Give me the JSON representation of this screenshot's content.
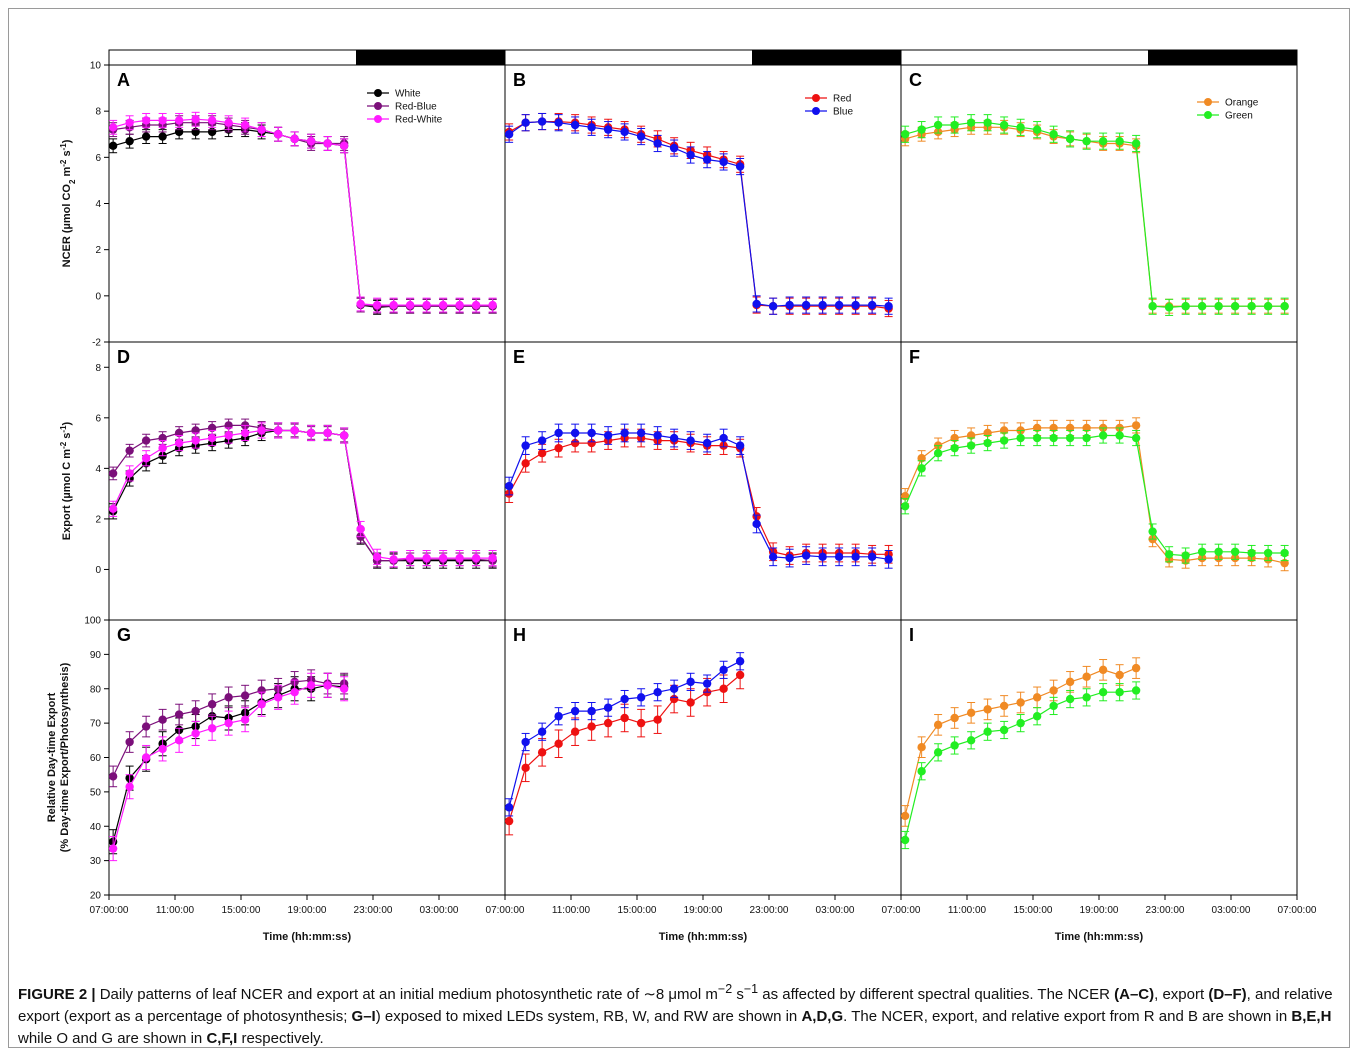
{
  "caption": {
    "fig_label": "FIGURE 2 |",
    "p1": " Daily patterns of leaf NCER and export at an initial medium photosynthetic rate of ∼8 μmol m",
    "sup1": "−2",
    "p2": " s",
    "sup2": "−1",
    "p3": " as affected by different spectral qualities. The NCER ",
    "b1": "(A–C)",
    "p4": ", export ",
    "b2": "(D–F)",
    "p5": ", and relative export (export as a percentage of photosynthesis; ",
    "b3": "G–I",
    "p6": ") exposed to mixed LEDs system, RB, W, and RW are shown in ",
    "b4": "A,D,G",
    "p7": ". The NCER, export, and relative export from R and B are shown in ",
    "b5": "B,E,H",
    "p8": " while O and G are shown in ",
    "b6": "C,F,I",
    "p9": " respectively."
  },
  "colors": {
    "White": "#000000",
    "Red-Blue": "#7b0f7a",
    "Red-White": "#ff1aff",
    "Red": "#ee1111",
    "Blue": "#1010ee",
    "Orange": "#f08a24",
    "Green": "#22ee22"
  },
  "chart_data": {
    "type": "line",
    "x_axis": {
      "label": "Time (hh:mm:ss)",
      "tick_labels": [
        "07:00:00",
        "11:00:00",
        "15:00:00",
        "19:00:00",
        "23:00:00",
        "03:00:00",
        "07:00:00"
      ],
      "tick_hours": [
        7,
        11,
        15,
        19,
        23,
        27,
        31
      ],
      "range_hours": [
        7,
        31
      ]
    },
    "light_bar": {
      "light_hours": [
        7,
        22
      ],
      "dark_hours": [
        22,
        31
      ]
    },
    "rows": [
      {
        "id": "ncer",
        "ylabel": "NCER (µmol CO₂ m⁻² s⁻¹)",
        "ylabel_parts": [
          "NCER (µmol CO",
          "2",
          " m",
          "-2",
          " s",
          "-1",
          ")"
        ],
        "ylim": [
          -2,
          10
        ],
        "yticks": [
          -2,
          0,
          2,
          4,
          6,
          8,
          10
        ]
      },
      {
        "id": "export",
        "ylabel": "Export (µmol C m⁻² s⁻¹)",
        "ylabel_parts": [
          "Export (µmol C m",
          "-2",
          " s",
          "-1",
          ")"
        ],
        "ylim": [
          -2,
          9
        ],
        "yticks": [
          0,
          2,
          4,
          6,
          8
        ]
      },
      {
        "id": "relative",
        "ylabel": [
          "Relative Day-time Export",
          "(% Day-time Export/Photosynthesis)"
        ],
        "ylim": [
          20,
          100
        ],
        "yticks": [
          20,
          30,
          40,
          50,
          60,
          70,
          80,
          90,
          100
        ]
      }
    ],
    "panels": [
      {
        "letter": "A",
        "row": 0,
        "col": 0,
        "legend": [
          "White",
          "Red-Blue",
          "Red-White"
        ],
        "x": [
          7.25,
          8.25,
          9.25,
          10.25,
          11.25,
          12.25,
          13.25,
          14.25,
          15.25,
          16.25,
          17.25,
          18.25,
          19.25,
          20.25,
          21.25,
          22.25,
          23.25,
          24.25,
          25.25,
          26.25,
          27.25,
          28.25,
          29.25,
          30.25
        ],
        "series": [
          {
            "name": "White",
            "values": [
              6.5,
              6.7,
              6.9,
              6.9,
              7.1,
              7.1,
              7.1,
              7.2,
              7.2,
              7.1,
              7.0,
              6.8,
              6.7,
              6.6,
              6.5,
              -0.4,
              -0.5,
              -0.45,
              -0.45,
              -0.45,
              -0.45,
              -0.45,
              -0.45,
              -0.45
            ],
            "err": 0.3
          },
          {
            "name": "Red-Blue",
            "values": [
              7.2,
              7.3,
              7.4,
              7.4,
              7.5,
              7.5,
              7.5,
              7.4,
              7.3,
              7.2,
              7.0,
              6.8,
              6.6,
              6.6,
              6.6,
              -0.4,
              -0.45,
              -0.45,
              -0.45,
              -0.45,
              -0.45,
              -0.45,
              -0.45,
              -0.45
            ],
            "err": 0.3
          },
          {
            "name": "Red-White",
            "values": [
              7.3,
              7.5,
              7.6,
              7.6,
              7.6,
              7.65,
              7.6,
              7.5,
              7.4,
              7.2,
              7.0,
              6.8,
              6.7,
              6.6,
              6.5,
              -0.35,
              -0.4,
              -0.4,
              -0.4,
              -0.4,
              -0.4,
              -0.4,
              -0.4,
              -0.4
            ],
            "err": 0.3
          }
        ]
      },
      {
        "letter": "B",
        "row": 0,
        "col": 1,
        "legend": [
          "Red",
          "Blue"
        ],
        "x": [
          7.25,
          8.25,
          9.25,
          10.25,
          11.25,
          12.25,
          13.25,
          14.25,
          15.25,
          16.25,
          17.25,
          18.25,
          19.25,
          20.25,
          21.25,
          22.25,
          23.25,
          24.25,
          25.25,
          26.25,
          27.25,
          28.25,
          29.25,
          30.25
        ],
        "series": [
          {
            "name": "Red",
            "values": [
              7.1,
              7.5,
              7.55,
              7.55,
              7.5,
              7.4,
              7.3,
              7.2,
              7.0,
              6.8,
              6.5,
              6.3,
              6.1,
              5.9,
              5.7,
              -0.4,
              -0.45,
              -0.45,
              -0.45,
              -0.45,
              -0.45,
              -0.45,
              -0.45,
              -0.55
            ],
            "err": 0.35
          },
          {
            "name": "Blue",
            "values": [
              7.0,
              7.5,
              7.55,
              7.5,
              7.4,
              7.3,
              7.2,
              7.1,
              6.9,
              6.6,
              6.4,
              6.1,
              5.9,
              5.8,
              5.6,
              -0.35,
              -0.45,
              -0.4,
              -0.4,
              -0.4,
              -0.4,
              -0.4,
              -0.4,
              -0.45
            ],
            "err": 0.35
          }
        ]
      },
      {
        "letter": "C",
        "row": 0,
        "col": 2,
        "legend": [
          "Orange",
          "Green"
        ],
        "x": [
          7.25,
          8.25,
          9.25,
          10.25,
          11.25,
          12.25,
          13.25,
          14.25,
          15.25,
          16.25,
          17.25,
          18.25,
          19.25,
          20.25,
          21.25,
          22.25,
          23.25,
          24.25,
          25.25,
          26.25,
          27.25,
          28.25,
          29.25,
          30.25
        ],
        "series": [
          {
            "name": "Orange",
            "values": [
              6.8,
              7.0,
              7.1,
              7.2,
              7.3,
              7.3,
              7.3,
              7.2,
              7.1,
              6.9,
              6.8,
              6.7,
              6.6,
              6.6,
              6.5,
              -0.45,
              -0.45,
              -0.45,
              -0.45,
              -0.45,
              -0.45,
              -0.45,
              -0.45,
              -0.45
            ],
            "err": 0.3
          },
          {
            "name": "Green",
            "values": [
              7.0,
              7.2,
              7.4,
              7.4,
              7.5,
              7.5,
              7.4,
              7.3,
              7.2,
              7.0,
              6.8,
              6.7,
              6.7,
              6.7,
              6.6,
              -0.45,
              -0.5,
              -0.45,
              -0.45,
              -0.45,
              -0.45,
              -0.45,
              -0.45,
              -0.45
            ],
            "err": 0.35
          }
        ]
      },
      {
        "letter": "D",
        "row": 1,
        "col": 0,
        "x": [
          7.25,
          8.25,
          9.25,
          10.25,
          11.25,
          12.25,
          13.25,
          14.25,
          15.25,
          16.25,
          17.25,
          18.25,
          19.25,
          20.25,
          21.25,
          22.25,
          23.25,
          24.25,
          25.25,
          26.25,
          27.25,
          28.25,
          29.25,
          30.25
        ],
        "series": [
          {
            "name": "White",
            "values": [
              2.3,
              3.6,
              4.2,
              4.5,
              4.8,
              4.9,
              5.0,
              5.1,
              5.2,
              5.4,
              5.5,
              5.5,
              5.4,
              5.4,
              5.3,
              1.3,
              0.35,
              0.35,
              0.35,
              0.35,
              0.35,
              0.35,
              0.35,
              0.35
            ],
            "err": 0.3
          },
          {
            "name": "Red-Blue",
            "values": [
              3.8,
              4.7,
              5.1,
              5.2,
              5.4,
              5.5,
              5.6,
              5.7,
              5.7,
              5.6,
              5.5,
              5.5,
              5.4,
              5.4,
              5.3,
              1.3,
              0.35,
              0.35,
              0.4,
              0.4,
              0.4,
              0.4,
              0.4,
              0.35
            ],
            "err": 0.25
          },
          {
            "name": "Red-White",
            "values": [
              2.4,
              3.8,
              4.4,
              4.8,
              5.0,
              5.1,
              5.2,
              5.3,
              5.4,
              5.5,
              5.5,
              5.5,
              5.4,
              5.4,
              5.3,
              1.6,
              0.5,
              0.4,
              0.45,
              0.45,
              0.45,
              0.45,
              0.45,
              0.45
            ],
            "err": 0.3
          }
        ]
      },
      {
        "letter": "E",
        "row": 1,
        "col": 1,
        "x": [
          7.25,
          8.25,
          9.25,
          10.25,
          11.25,
          12.25,
          13.25,
          14.25,
          15.25,
          16.25,
          17.25,
          18.25,
          19.25,
          20.25,
          21.25,
          22.25,
          23.25,
          24.25,
          25.25,
          26.25,
          27.25,
          28.25,
          29.25,
          30.25
        ],
        "series": [
          {
            "name": "Red",
            "values": [
              3.0,
              4.2,
              4.6,
              4.8,
              5.0,
              5.0,
              5.1,
              5.2,
              5.2,
              5.1,
              5.1,
              5.0,
              4.9,
              4.9,
              4.8,
              2.1,
              0.7,
              0.55,
              0.65,
              0.65,
              0.65,
              0.65,
              0.6,
              0.6
            ],
            "err": 0.35
          },
          {
            "name": "Blue",
            "values": [
              3.3,
              4.9,
              5.1,
              5.4,
              5.4,
              5.4,
              5.3,
              5.4,
              5.4,
              5.3,
              5.2,
              5.1,
              5.0,
              5.2,
              4.9,
              1.8,
              0.5,
              0.45,
              0.55,
              0.5,
              0.5,
              0.5,
              0.5,
              0.4
            ],
            "err": 0.35
          }
        ]
      },
      {
        "letter": "F",
        "row": 1,
        "col": 2,
        "x": [
          7.25,
          8.25,
          9.25,
          10.25,
          11.25,
          12.25,
          13.25,
          14.25,
          15.25,
          16.25,
          17.25,
          18.25,
          19.25,
          20.25,
          21.25,
          22.25,
          23.25,
          24.25,
          25.25,
          26.25,
          27.25,
          28.25,
          29.25,
          30.25
        ],
        "series": [
          {
            "name": "Orange",
            "values": [
              2.9,
              4.4,
              4.9,
              5.2,
              5.3,
              5.4,
              5.5,
              5.5,
              5.6,
              5.6,
              5.6,
              5.6,
              5.6,
              5.6,
              5.7,
              1.2,
              0.4,
              0.35,
              0.45,
              0.45,
              0.45,
              0.45,
              0.4,
              0.25
            ],
            "err": 0.3
          },
          {
            "name": "Green",
            "values": [
              2.5,
              4.0,
              4.6,
              4.8,
              4.9,
              5.0,
              5.1,
              5.2,
              5.2,
              5.2,
              5.2,
              5.2,
              5.3,
              5.3,
              5.2,
              1.5,
              0.6,
              0.55,
              0.7,
              0.7,
              0.7,
              0.65,
              0.65,
              0.65
            ],
            "err": 0.3
          }
        ]
      },
      {
        "letter": "G",
        "row": 2,
        "col": 0,
        "x": [
          7.25,
          8.25,
          9.25,
          10.25,
          11.25,
          12.25,
          13.25,
          14.25,
          15.25,
          16.25,
          17.25,
          18.25,
          19.25,
          20.25,
          21.25
        ],
        "series": [
          {
            "name": "White",
            "values": [
              35.5,
              54,
              59.5,
              64,
              68,
              69,
              72,
              71.5,
              73,
              76,
              78,
              80,
              80,
              81,
              80.5
            ],
            "err": 3.5
          },
          {
            "name": "Red-Blue",
            "values": [
              54.5,
              64.5,
              69,
              71,
              72.5,
              73.5,
              75.5,
              77.5,
              78,
              79.5,
              80,
              82,
              82.5,
              81.5,
              81.5
            ],
            "err": 3.0
          },
          {
            "name": "Red-White",
            "values": [
              33.5,
              51.5,
              60,
              62.5,
              65,
              67,
              68.5,
              70,
              71,
              75.5,
              77.5,
              79,
              81,
              81,
              80
            ],
            "err": 3.5
          }
        ]
      },
      {
        "letter": "H",
        "row": 2,
        "col": 1,
        "x": [
          7.25,
          8.25,
          9.25,
          10.25,
          11.25,
          12.25,
          13.25,
          14.25,
          15.25,
          16.25,
          17.25,
          18.25,
          19.25,
          20.25,
          21.25
        ],
        "series": [
          {
            "name": "Red",
            "values": [
              41.5,
              57,
              61.5,
              64,
              67.5,
              69,
              70,
              71.5,
              70,
              71,
              77,
              76,
              79,
              80,
              84
            ],
            "err": 4.0
          },
          {
            "name": "Blue",
            "values": [
              45.5,
              64.5,
              67.5,
              72,
              73.5,
              73.5,
              74.5,
              77,
              77.5,
              79,
              80,
              82,
              81.5,
              85.5,
              88
            ],
            "err": 2.5
          }
        ]
      },
      {
        "letter": "I",
        "row": 2,
        "col": 2,
        "x": [
          7.25,
          8.25,
          9.25,
          10.25,
          11.25,
          12.25,
          13.25,
          14.25,
          15.25,
          16.25,
          17.25,
          18.25,
          19.25,
          20.25,
          21.25
        ],
        "series": [
          {
            "name": "Orange",
            "values": [
              43,
              63,
              69.5,
              71.5,
              73,
              74,
              75,
              76,
              77.5,
              79.5,
              82,
              83.5,
              85.5,
              84,
              86
            ],
            "err": 3.0
          },
          {
            "name": "Green",
            "values": [
              36,
              56,
              61.5,
              63.5,
              65,
              67.5,
              68,
              70,
              72,
              75,
              77,
              77.5,
              79,
              79,
              79.5
            ],
            "err": 2.5
          }
        ]
      }
    ]
  }
}
